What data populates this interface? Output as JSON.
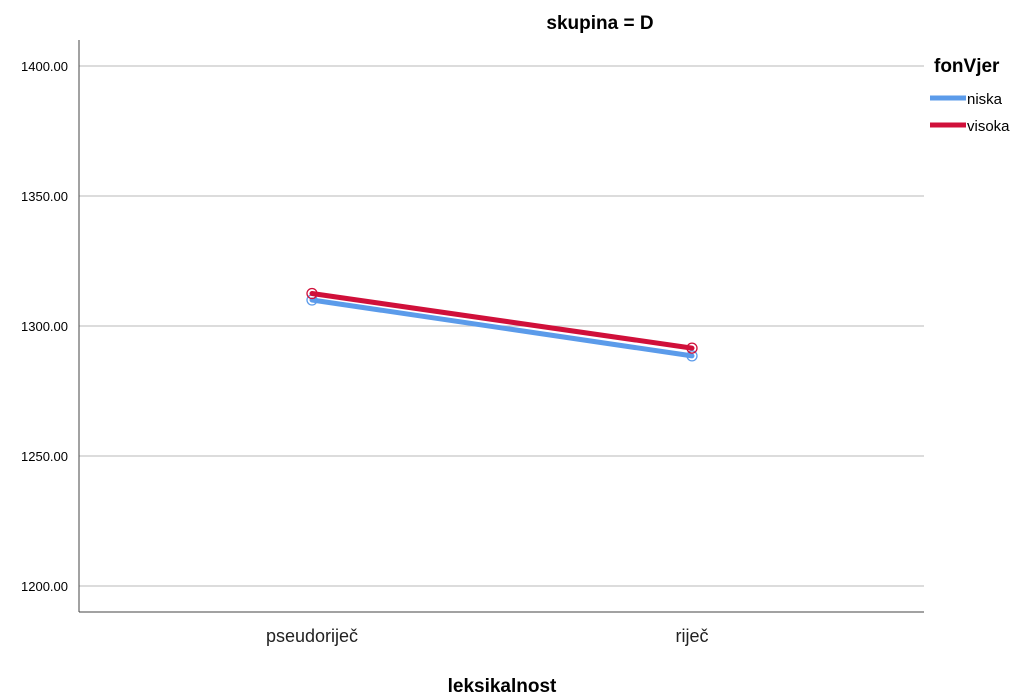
{
  "chart_data": {
    "type": "line",
    "title": "skupina = D",
    "xlabel": "leksikalnost",
    "ylabel": "",
    "categories": [
      "pseudoriječ",
      "riječ"
    ],
    "ylim": [
      1190,
      1410
    ],
    "yticks": [
      1200,
      1250,
      1300,
      1350,
      1400
    ],
    "ytick_labels": [
      "1200.00",
      "1250.00",
      "1300.00",
      "1350.00",
      "1400.00"
    ],
    "grid": "horizontal",
    "legend": {
      "title": "fonVjer",
      "placement": "top-right"
    },
    "series": [
      {
        "name": "niska",
        "values": [
          1310,
          1288.5
        ],
        "color": "#5b9bea"
      },
      {
        "name": "visoka",
        "values": [
          1312.5,
          1291.5
        ],
        "color": "#d0103a"
      }
    ]
  }
}
